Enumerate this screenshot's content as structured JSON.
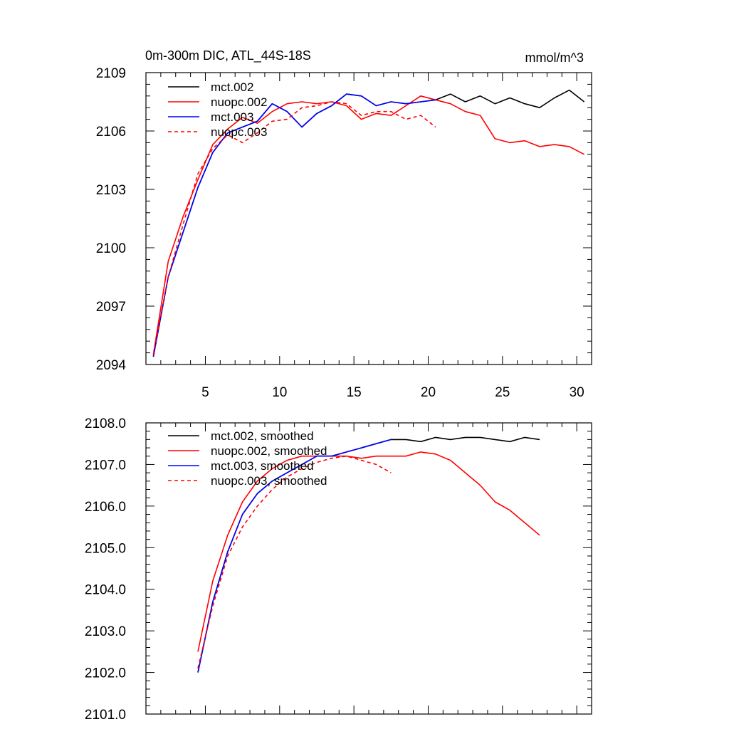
{
  "chart_data": [
    {
      "type": "line",
      "title": "0m-300m DIC, ATL_44S-18S",
      "units_label": "mmol/m^3",
      "xlim": [
        1,
        31
      ],
      "ylim": [
        2094,
        2109
      ],
      "xticks": [
        5,
        10,
        15,
        20,
        25,
        30
      ],
      "yticks": [
        2094,
        2097,
        2100,
        2103,
        2106,
        2109
      ],
      "ytick_labels": [
        "2094",
        "2097",
        "2100",
        "2103",
        "2106",
        "2109"
      ],
      "legend_location": "top-left",
      "series": [
        {
          "name": "mct.002",
          "color": "#000000",
          "dash": "solid",
          "x": [
            1.5,
            2.5,
            3.5,
            4.5,
            5.5,
            6.5,
            7.5,
            8.5,
            9.5,
            10.5,
            11.5,
            12.5,
            13.5,
            14.5,
            15.5,
            16.5,
            17.5,
            18.5,
            19.5,
            20.5,
            21.5,
            22.5,
            23.5,
            24.5,
            25.5,
            26.5,
            27.5,
            28.5,
            29.5,
            30.5
          ],
          "values": [
            2094.4,
            2098.5,
            2100.8,
            2103.1,
            2104.9,
            2105.9,
            2106.2,
            2106.5,
            2107.4,
            2107.0,
            2106.2,
            2106.9,
            2107.3,
            2107.9,
            2107.8,
            2107.3,
            2107.5,
            2107.4,
            2107.5,
            2107.6,
            2107.9,
            2107.5,
            2107.8,
            2107.4,
            2107.7,
            2107.4,
            2107.2,
            2107.7,
            2108.1,
            2107.5
          ]
        },
        {
          "name": "nuopc.002",
          "color": "#ff0000",
          "dash": "solid",
          "x": [
            1.5,
            2.5,
            3.5,
            4.5,
            5.5,
            6.5,
            7.5,
            8.5,
            9.5,
            10.5,
            11.5,
            12.5,
            13.5,
            14.5,
            15.5,
            16.5,
            17.5,
            18.5,
            19.5,
            20.5,
            21.5,
            22.5,
            23.5,
            24.5,
            25.5,
            26.5,
            27.5,
            28.5,
            29.5,
            30.5
          ],
          "values": [
            2094.5,
            2099.3,
            2101.6,
            2103.5,
            2105.3,
            2106.1,
            2106.7,
            2106.4,
            2107.0,
            2107.4,
            2107.5,
            2107.4,
            2107.5,
            2107.3,
            2106.6,
            2106.9,
            2106.8,
            2107.3,
            2107.8,
            2107.6,
            2107.4,
            2107.0,
            2106.8,
            2105.6,
            2105.4,
            2105.5,
            2105.2,
            2105.3,
            2105.2,
            2104.8
          ]
        },
        {
          "name": "mct.003",
          "color": "#0000ff",
          "dash": "solid",
          "x": [
            1.5,
            2.5,
            3.5,
            4.5,
            5.5,
            6.5,
            7.5,
            8.5,
            9.5,
            10.5,
            11.5,
            12.5,
            13.5,
            14.5,
            15.5,
            16.5,
            17.5,
            18.5,
            19.5,
            20.5
          ],
          "values": [
            2094.4,
            2098.5,
            2100.8,
            2103.1,
            2104.9,
            2105.9,
            2106.2,
            2106.5,
            2107.4,
            2107.0,
            2106.2,
            2106.9,
            2107.3,
            2107.9,
            2107.8,
            2107.3,
            2107.5,
            2107.4,
            2107.5,
            2107.6
          ]
        },
        {
          "name": "nuopc.003",
          "color": "#ff0000",
          "dash": "dashed",
          "x": [
            1.5,
            2.5,
            3.5,
            4.5,
            5.5,
            6.5,
            7.5,
            8.5,
            9.5,
            10.5,
            11.5,
            12.5,
            13.5,
            14.5,
            15.5,
            16.5,
            17.5,
            18.5,
            19.5,
            20.5
          ],
          "values": [
            2094.5,
            2098.5,
            2101.2,
            2103.8,
            2105.1,
            2105.8,
            2105.4,
            2105.9,
            2106.5,
            2106.6,
            2107.2,
            2107.3,
            2107.5,
            2107.4,
            2106.8,
            2107.0,
            2107.0,
            2106.6,
            2106.8,
            2106.2
          ]
        }
      ]
    },
    {
      "type": "line",
      "title": "",
      "units_label": "",
      "xlim": [
        1,
        31
      ],
      "ylim": [
        2101.0,
        2108.0
      ],
      "xticks": [
        5,
        10,
        15,
        20,
        25,
        30
      ],
      "yticks": [
        2101,
        2102,
        2103,
        2104,
        2105,
        2106,
        2107,
        2108
      ],
      "ytick_labels": [
        "2101.0",
        "2102.0",
        "2103.0",
        "2104.0",
        "2105.0",
        "2106.0",
        "2107.0",
        "2108.0"
      ],
      "legend_location": "top-left",
      "series": [
        {
          "name": "mct.002, smoothed",
          "color": "#000000",
          "dash": "solid",
          "x": [
            4.5,
            5.5,
            6.5,
            7.5,
            8.5,
            9.5,
            10.5,
            11.5,
            12.5,
            13.5,
            14.5,
            15.5,
            16.5,
            17.5,
            18.5,
            19.5,
            20.5,
            21.5,
            22.5,
            23.5,
            24.5,
            25.5,
            26.5,
            27.5
          ],
          "values": [
            2102.0,
            2103.7,
            2104.9,
            2105.8,
            2106.3,
            2106.6,
            2106.8,
            2107.0,
            2107.2,
            2107.2,
            2107.3,
            2107.4,
            2107.5,
            2107.6,
            2107.6,
            2107.55,
            2107.65,
            2107.6,
            2107.65,
            2107.65,
            2107.6,
            2107.55,
            2107.65,
            2107.6
          ]
        },
        {
          "name": "nuopc.002, smoothed",
          "color": "#ff0000",
          "dash": "solid",
          "x": [
            4.5,
            5.5,
            6.5,
            7.5,
            8.5,
            9.5,
            10.5,
            11.5,
            12.5,
            13.5,
            14.5,
            15.5,
            16.5,
            17.5,
            18.5,
            19.5,
            20.5,
            21.5,
            22.5,
            23.5,
            24.5,
            25.5,
            26.5,
            27.5
          ],
          "values": [
            2102.5,
            2104.2,
            2105.3,
            2106.1,
            2106.6,
            2106.9,
            2107.1,
            2107.2,
            2107.2,
            2107.2,
            2107.2,
            2107.15,
            2107.2,
            2107.2,
            2107.2,
            2107.3,
            2107.25,
            2107.1,
            2106.8,
            2106.5,
            2106.1,
            2105.9,
            2105.6,
            2105.3
          ]
        },
        {
          "name": "mct.003, smoothed",
          "color": "#0000ff",
          "dash": "solid",
          "x": [
            4.5,
            5.5,
            6.5,
            7.5,
            8.5,
            9.5,
            10.5,
            11.5,
            12.5,
            13.5,
            14.5,
            15.5,
            16.5,
            17.5
          ],
          "values": [
            2102.0,
            2103.7,
            2104.9,
            2105.8,
            2106.3,
            2106.6,
            2106.8,
            2107.0,
            2107.2,
            2107.2,
            2107.3,
            2107.4,
            2107.5,
            2107.6
          ]
        },
        {
          "name": "nuopc.003, smoothed",
          "color": "#ff0000",
          "dash": "dashed",
          "x": [
            4.5,
            5.5,
            6.5,
            7.5,
            8.5,
            9.5,
            10.5,
            11.5,
            12.5,
            13.5,
            14.5,
            15.5,
            16.5,
            17.5
          ],
          "values": [
            2102.1,
            2103.6,
            2104.8,
            2105.5,
            2106.0,
            2106.4,
            2106.7,
            2106.9,
            2107.05,
            2107.15,
            2107.2,
            2107.1,
            2107.0,
            2106.8
          ]
        }
      ]
    }
  ]
}
